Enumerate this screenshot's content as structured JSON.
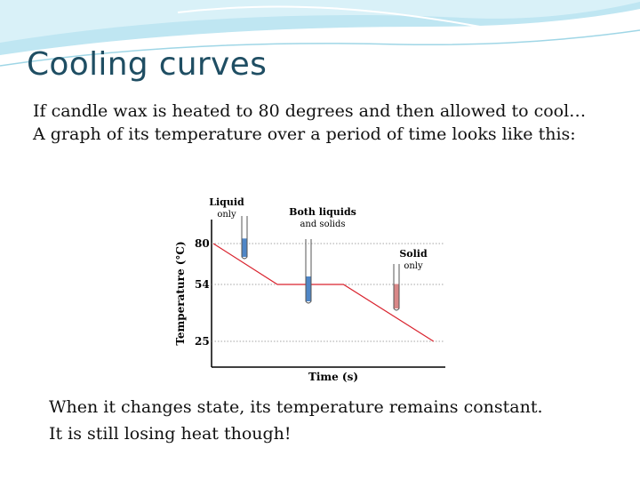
{
  "slide": {
    "title": "Cooling curves",
    "intro": [
      "If candle wax is heated to 80 degrees and then allowed to cool…",
      "A graph of its temperature over a period of time looks like this:"
    ],
    "outro": [
      "When it changes state, its temperature remains constant.",
      "It is still losing heat though!"
    ]
  },
  "chart_data": {
    "type": "line",
    "xlabel": "Time (s)",
    "ylabel": "Temperature (°C)",
    "yticks": [
      80,
      54,
      25
    ],
    "ylim": [
      20,
      85
    ],
    "series": [
      {
        "x": [
          0,
          3.2,
          6.5,
          11.0
        ],
        "y": [
          80,
          54,
          54,
          25
        ]
      }
    ],
    "annotations": [
      {
        "line1": "Liquid",
        "line2": "only",
        "fill_fraction": 0.45,
        "fill_color": "#4f86c6"
      },
      {
        "line1": "Both liquids",
        "line2": "and solids",
        "fill_fraction": 0.4,
        "fill_color": "#4f86c6"
      },
      {
        "line1": "Solid",
        "line2": "only",
        "fill_fraction": 0.55,
        "fill_color": "#d98888"
      }
    ],
    "line_color": "#d9232e",
    "dotted_guides": true
  }
}
